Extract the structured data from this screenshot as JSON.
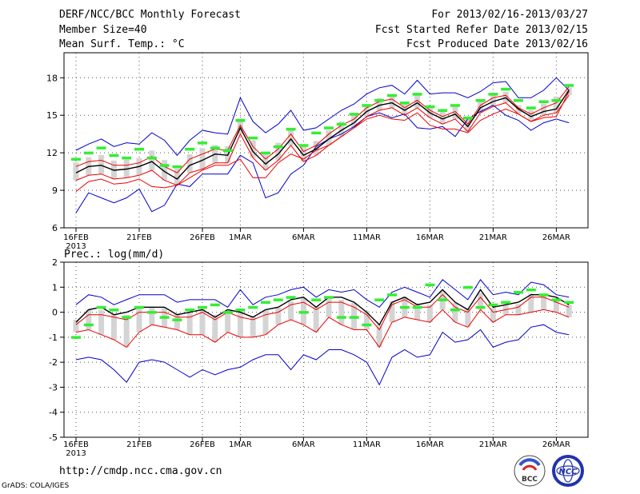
{
  "header": {
    "title": "DERF/NCC/BCC Monthly Forecast",
    "member_size": "Member Size=40",
    "variable": "Mean Surf. Temp.: °C",
    "period": "For 2013/02/16-2013/03/27",
    "refer_date": "Fcst Started Refer Date 2013/02/15",
    "produced_date": "Fcst Produced Date 2013/02/16"
  },
  "footer": {
    "url": "http://cmdp.ncc.cma.gov.cn",
    "credit": "GrADS: COLA/IGES"
  },
  "logos": {
    "bcc": "BCC",
    "ncc": "NCC"
  },
  "colors": {
    "max_min": "#0000cc",
    "spread": "#ee0000",
    "mean": "#000000",
    "box": "#d4d4d4",
    "median": "#33ee33",
    "grid": "#555555"
  },
  "chart_data": [
    {
      "type": "line",
      "panel": "temperature",
      "title": "Mean Surf. Temp.: °C",
      "ylim": [
        6,
        20
      ],
      "yticks": [
        6,
        9,
        12,
        15,
        18
      ],
      "xtick_labels": [
        "16FEB",
        "21FEB",
        "26FEB",
        "1MAR",
        "6MAR",
        "11MAR",
        "16MAR",
        "21MAR",
        "26MAR"
      ],
      "xtick_days": [
        0,
        5,
        10,
        13,
        18,
        23,
        28,
        33,
        38
      ],
      "year_label": "2013",
      "days": 40,
      "series": [
        {
          "name": "max",
          "values": [
            12.2,
            12.7,
            13.1,
            12.5,
            12.8,
            12.7,
            13.6,
            13.0,
            11.8,
            13.0,
            13.8,
            13.6,
            13.5,
            16.4,
            14.5,
            13.6,
            14.3,
            15.4,
            13.8,
            14.0,
            14.7,
            15.4,
            15.9,
            16.7,
            17.2,
            17.4,
            16.7,
            17.8,
            16.7,
            16.8,
            16.8,
            16.4,
            16.9,
            17.6,
            17.7,
            16.4,
            16.4,
            17.0,
            18.0,
            17.0
          ]
        },
        {
          "name": "upper",
          "values": [
            10.9,
            11.3,
            11.4,
            11.0,
            11.0,
            11.2,
            11.7,
            10.9,
            10.4,
            11.5,
            11.9,
            12.3,
            12.2,
            14.2,
            12.5,
            11.5,
            12.3,
            13.5,
            12.1,
            12.6,
            13.5,
            14.2,
            14.7,
            15.6,
            16.1,
            16.3,
            15.6,
            16.2,
            15.4,
            14.9,
            15.3,
            14.3,
            15.8,
            16.4,
            16.6,
            15.6,
            15.1,
            15.6,
            16.0,
            17.3
          ]
        },
        {
          "name": "mean",
          "values": [
            10.4,
            10.9,
            11.0,
            10.6,
            10.7,
            10.9,
            11.3,
            10.5,
            9.9,
            11.0,
            11.4,
            11.9,
            11.8,
            14.0,
            12.1,
            11.1,
            11.9,
            13.1,
            11.8,
            12.3,
            13.1,
            13.8,
            14.4,
            15.3,
            15.8,
            16.0,
            15.4,
            16.0,
            15.2,
            14.7,
            15.1,
            14.1,
            15.6,
            16.1,
            16.4,
            15.5,
            14.9,
            15.3,
            15.5,
            17.0
          ]
        },
        {
          "name": "lower",
          "values": [
            9.8,
            10.2,
            10.3,
            9.9,
            10.0,
            10.2,
            10.6,
            9.8,
            9.4,
            10.4,
            10.7,
            11.2,
            11.2,
            13.5,
            11.6,
            10.6,
            11.4,
            12.6,
            11.3,
            11.8,
            12.6,
            13.3,
            14.0,
            14.9,
            15.4,
            15.6,
            15.0,
            15.6,
            14.8,
            14.3,
            14.7,
            13.7,
            15.2,
            15.7,
            16.0,
            15.1,
            14.5,
            15.0,
            15.2,
            16.6
          ]
        },
        {
          "name": "min",
          "values": [
            8.9,
            9.7,
            9.9,
            9.5,
            9.6,
            9.9,
            9.3,
            9.2,
            9.4,
            10.0,
            10.6,
            11.0,
            11.0,
            11.5,
            10.0,
            10.0,
            11.2,
            11.9,
            11.5,
            12.2,
            12.6,
            13.3,
            14.0,
            14.7,
            15.0,
            14.7,
            14.6,
            15.2,
            14.2,
            13.9,
            13.9,
            13.6,
            14.6,
            15.1,
            15.5,
            15.1,
            14.5,
            14.8,
            14.9,
            16.9
          ]
        },
        {
          "name": "extreme_min",
          "values": [
            7.2,
            8.8,
            8.4,
            8.0,
            8.4,
            9.1,
            7.3,
            7.8,
            9.5,
            9.3,
            10.3,
            10.3,
            10.3,
            11.8,
            11.2,
            8.4,
            8.8,
            10.3,
            11.0,
            12.5,
            13.1,
            13.5,
            14.1,
            14.9,
            15.2,
            14.8,
            15.1,
            14.0,
            13.9,
            14.1,
            13.3,
            14.7,
            15.3,
            15.8,
            15.0,
            14.6,
            13.8,
            14.4,
            14.7,
            14.4
          ]
        },
        {
          "name": "median",
          "values": [
            11.5,
            12.0,
            12.4,
            11.8,
            11.6,
            12.3,
            11.6,
            11.0,
            10.9,
            12.3,
            12.8,
            12.4,
            12.2,
            14.6,
            13.2,
            12.0,
            12.5,
            13.9,
            12.6,
            13.6,
            14.0,
            14.3,
            15.1,
            15.8,
            16.2,
            16.6,
            16.0,
            16.7,
            15.7,
            15.4,
            15.8,
            14.8,
            16.2,
            16.7,
            17.1,
            16.2,
            15.6,
            16.1,
            16.2,
            17.4
          ]
        }
      ]
    },
    {
      "type": "line",
      "panel": "precipitation",
      "title": "Prec.: log(mm/d)",
      "ylim": [
        -5,
        2
      ],
      "yticks": [
        -5,
        -4,
        -3,
        -2,
        -1,
        0,
        1,
        2
      ],
      "xtick_labels": [
        "16FEB",
        "21FEB",
        "26FEB",
        "1MAR",
        "6MAR",
        "11MAR",
        "16MAR",
        "21MAR",
        "26MAR"
      ],
      "xtick_days": [
        0,
        5,
        10,
        13,
        18,
        23,
        28,
        33,
        38
      ],
      "year_label": "2013",
      "days": 40,
      "series": [
        {
          "name": "max",
          "values": [
            0.3,
            0.7,
            0.6,
            0.3,
            0.5,
            0.7,
            0.7,
            0.7,
            0.4,
            0.5,
            0.5,
            0.5,
            0.2,
            0.9,
            0.3,
            0.6,
            0.7,
            0.9,
            1.0,
            0.6,
            0.9,
            0.8,
            0.9,
            0.5,
            0.2,
            0.8,
            1.0,
            0.8,
            0.6,
            1.3,
            0.9,
            0.5,
            1.3,
            0.7,
            0.8,
            0.7,
            1.2,
            1.1,
            0.7,
            0.6
          ]
        },
        {
          "name": "mean",
          "values": [
            -0.4,
            0.1,
            0.2,
            -0.1,
            0.0,
            0.2,
            0.2,
            0.2,
            -0.1,
            0.0,
            0.1,
            -0.2,
            0.1,
            0.0,
            -0.2,
            0.1,
            0.2,
            0.5,
            0.6,
            0.2,
            0.6,
            0.6,
            0.4,
            0.0,
            -0.5,
            0.4,
            0.6,
            0.3,
            0.4,
            0.9,
            0.4,
            0.1,
            0.9,
            0.2,
            0.3,
            0.4,
            0.7,
            0.7,
            0.6,
            0.3
          ]
        },
        {
          "name": "upper",
          "values": [
            -0.5,
            -0.1,
            -0.1,
            -0.2,
            -0.3,
            0.0,
            0.0,
            0.0,
            -0.2,
            -0.2,
            0.0,
            -0.3,
            0.0,
            -0.2,
            -0.3,
            -0.1,
            0.0,
            0.3,
            0.4,
            0.1,
            0.4,
            0.4,
            0.2,
            -0.1,
            -0.7,
            0.3,
            0.5,
            0.2,
            0.2,
            0.7,
            0.2,
            0.0,
            0.6,
            0.0,
            0.1,
            0.2,
            0.6,
            0.6,
            0.4,
            0.2
          ]
        },
        {
          "name": "lower",
          "values": [
            -0.8,
            -0.7,
            -0.9,
            -1.1,
            -1.4,
            -0.8,
            -0.5,
            -0.6,
            -0.7,
            -0.9,
            -0.9,
            -1.2,
            -0.8,
            -1.0,
            -1.0,
            -0.9,
            -0.5,
            -0.3,
            -0.5,
            -0.8,
            -0.2,
            -0.5,
            -0.7,
            -0.7,
            -1.4,
            -0.4,
            -0.2,
            -0.3,
            -0.4,
            0.1,
            -0.4,
            -0.6,
            0.1,
            -0.4,
            -0.1,
            -0.1,
            0.0,
            0.1,
            0.0,
            -0.2
          ]
        },
        {
          "name": "min",
          "values": [
            -1.9,
            -1.8,
            -1.9,
            -2.3,
            -2.8,
            -2.0,
            -1.9,
            -2.0,
            -2.3,
            -2.6,
            -2.3,
            -2.5,
            -2.3,
            -2.2,
            -1.9,
            -1.7,
            -1.7,
            -2.3,
            -1.7,
            -1.9,
            -1.5,
            -1.5,
            -1.7,
            -2.0,
            -2.9,
            -1.8,
            -1.5,
            -1.8,
            -1.7,
            -0.8,
            -1.2,
            -1.1,
            -0.7,
            -1.4,
            -1.2,
            -1.1,
            -0.6,
            -0.5,
            -0.8,
            -0.9
          ]
        },
        {
          "name": "median",
          "values": [
            -1.0,
            -0.5,
            0.2,
            0.1,
            -0.2,
            0.2,
            0.0,
            -0.2,
            -0.3,
            0.1,
            0.2,
            0.3,
            0.0,
            0.1,
            0.2,
            0.4,
            0.5,
            0.6,
            0.0,
            0.5,
            0.6,
            -0.2,
            -0.2,
            -0.5,
            0.5,
            0.7,
            0.2,
            0.2,
            1.1,
            0.5,
            0.1,
            1.0,
            0.2,
            0.3,
            0.4,
            0.8,
            0.9,
            0.7,
            0.5,
            0.4
          ]
        }
      ]
    }
  ]
}
